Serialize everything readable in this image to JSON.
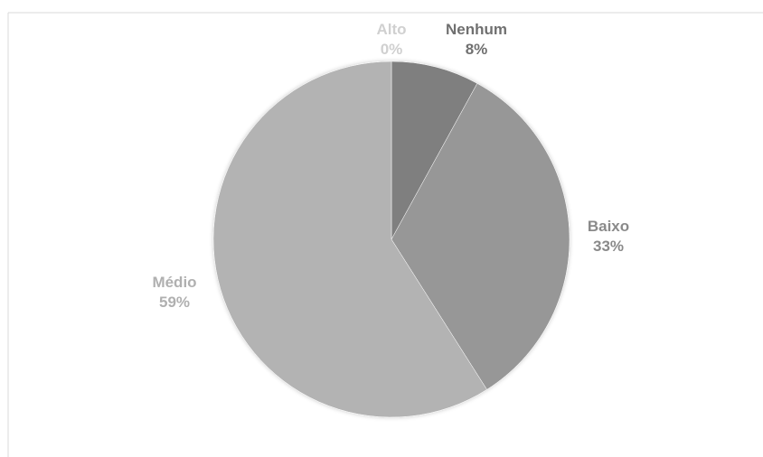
{
  "chart_data": {
    "type": "pie",
    "title": "",
    "categories": [
      "Nenhum",
      "Baixo",
      "Médio",
      "Alto"
    ],
    "values": [
      8,
      33,
      59,
      0
    ],
    "value_labels": [
      "8%",
      "33%",
      "59%",
      "0%"
    ],
    "colors": [
      "#7f7f7f",
      "#979797",
      "#b3b3b3",
      "#d3d3d3"
    ],
    "label_colors": [
      "#707070",
      "#8a8a8a",
      "#b0b0b0",
      "#d0d0d0"
    ],
    "start": "12 o'clock",
    "direction": "clockwise",
    "legend": "none"
  }
}
